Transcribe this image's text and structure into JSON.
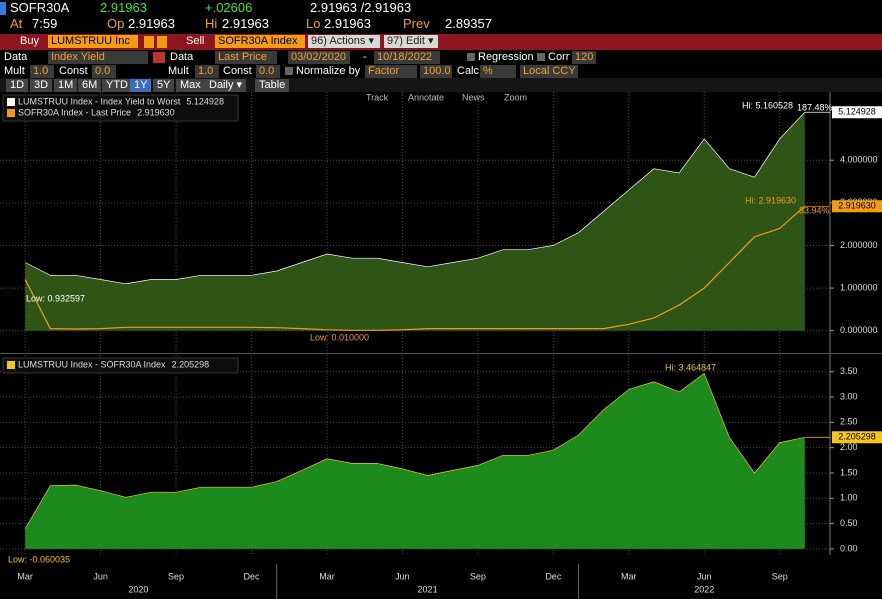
{
  "header": {
    "ticker": "SOFR30A",
    "last": "2.91963",
    "change": "+.02606",
    "bid_ask": "2.91963 /2.91963",
    "time_label": "At",
    "time": "7:59",
    "open_label": "Op",
    "open": "2.91963",
    "high_label": "Hi",
    "high": "2.91963",
    "low_label": "Lo",
    "low": "2.91963",
    "prev_label": "Prev",
    "prev": "2.89357"
  },
  "toolbar": {
    "buy": "Buy",
    "security1": "LUMSTRUU Inc",
    "sell": "Sell",
    "security2": "SOFR30A Index",
    "actions": "96) Actions ▾",
    "edit": "97) Edit ▾"
  },
  "data_row": {
    "data_label": "Data",
    "data_field": "Index Yield",
    "data2_label": "Data",
    "data2_field": "Last Price",
    "start": "03/02/2020",
    "separator": "-",
    "end": "10/18/2022",
    "regression": "Regression",
    "corr": "Corr",
    "corr_window": "120"
  },
  "mult_row": {
    "mult1_label": "Mult",
    "mult1": "1.0",
    "const1_label": "Const",
    "const1": "0.0",
    "mult2_label": "Mult",
    "mult2": "1.0",
    "const2_label": "Const",
    "const2": "0.0",
    "normalize_label": "Normalize by",
    "normalize": "Factor",
    "factor": "100.0",
    "calc_label": "Calc",
    "calc": "%",
    "currency": "Local CCY"
  },
  "periods": [
    "1D",
    "3D",
    "1M",
    "6M",
    "YTD",
    "1Y",
    "5Y",
    "Max"
  ],
  "active_period": "1Y",
  "frequency": "Daily ▾",
  "table": "Table",
  "chart_tools": [
    "Track",
    "Annotate",
    "News",
    "Zoom"
  ],
  "chart_data": [
    {
      "type": "area",
      "xlim": [
        "2020-02",
        "2022-11"
      ],
      "ylim": [
        -0.5,
        5.6
      ],
      "grid": true,
      "yticks": [
        {
          "value": 0,
          "label": "0.000000"
        },
        {
          "value": 1,
          "label": "1.000000"
        },
        {
          "value": 2,
          "label": "2.000000"
        },
        {
          "value": 3,
          "label": "3.000000"
        },
        {
          "value": 4,
          "label": "4.000000"
        }
      ],
      "x": [
        "2020-03",
        "2020-04",
        "2020-05",
        "2020-06",
        "2020-07",
        "2020-08",
        "2020-09",
        "2020-10",
        "2020-11",
        "2020-12",
        "2021-01",
        "2021-02",
        "2021-03",
        "2021-04",
        "2021-05",
        "2021-06",
        "2021-07",
        "2021-08",
        "2021-09",
        "2021-10",
        "2021-11",
        "2021-12",
        "2022-01",
        "2022-02",
        "2022-03",
        "2022-04",
        "2022-05",
        "2022-06",
        "2022-07",
        "2022-08",
        "2022-09",
        "2022-10"
      ],
      "series": [
        {
          "name": "LUMSTRUU Index - Index Yield to Worst",
          "color": "#ffffff",
          "fill": "#2f5516",
          "values": [
            1.6,
            1.3,
            1.3,
            1.2,
            1.1,
            1.2,
            1.2,
            1.3,
            1.3,
            1.3,
            1.4,
            1.6,
            1.8,
            1.7,
            1.7,
            1.6,
            1.5,
            1.6,
            1.7,
            1.9,
            1.9,
            2.0,
            2.3,
            2.8,
            3.3,
            3.8,
            3.7,
            4.5,
            3.8,
            3.6,
            4.5,
            5.124928
          ]
        },
        {
          "name": "SOFR30A Index - Last Price",
          "color": "#f39c12",
          "values": [
            1.2,
            0.05,
            0.04,
            0.05,
            0.08,
            0.08,
            0.08,
            0.08,
            0.08,
            0.08,
            0.07,
            0.05,
            0.02,
            0.01,
            0.01,
            0.02,
            0.05,
            0.05,
            0.05,
            0.05,
            0.05,
            0.05,
            0.05,
            0.05,
            0.15,
            0.3,
            0.6,
            1.0,
            1.6,
            2.2,
            2.4,
            2.91963
          ],
          "value_labels": [
            null,
            null,
            null,
            null,
            null,
            null,
            null,
            null,
            null,
            null,
            null,
            null,
            null,
            null,
            null,
            null,
            null,
            null,
            null,
            null,
            null,
            null,
            null,
            null,
            null,
            null,
            null,
            null,
            null,
            null,
            null,
            "2.919630"
          ]
        }
      ],
      "annotations": [
        "Hi: 5.160528",
        "187.48%",
        "Low: 0.932597",
        "Low: 0.010000",
        "Hi: 2.919630",
        "83.94%"
      ]
    },
    {
      "type": "area",
      "xlim": [
        "2020-02",
        "2022-11"
      ],
      "ylim": [
        -0.12,
        3.83
      ],
      "grid": true,
      "yticks": [
        {
          "value": 0,
          "label": "0.00"
        },
        {
          "value": 0.5,
          "label": "0.50"
        },
        {
          "value": 1,
          "label": "1.00"
        },
        {
          "value": 1.5,
          "label": "1.50"
        },
        {
          "value": 2,
          "label": "2.00"
        },
        {
          "value": 2.5,
          "label": "2.50"
        },
        {
          "value": 3,
          "label": "3.00"
        },
        {
          "value": 3.5,
          "label": "3.50"
        }
      ],
      "xticks": [
        {
          "value": "2020-03",
          "label": "Mar"
        },
        {
          "value": "2020-06",
          "label": "Jun"
        },
        {
          "value": "2020-09",
          "label": "Sep"
        },
        {
          "value": "2020-12",
          "label": "Dec"
        },
        {
          "value": "2021-03",
          "label": "Mar"
        },
        {
          "value": "2021-06",
          "label": "Jun"
        },
        {
          "value": "2021-09",
          "label": "Sep"
        },
        {
          "value": "2021-12",
          "label": "Dec"
        },
        {
          "value": "2022-03",
          "label": "Mar"
        },
        {
          "value": "2022-06",
          "label": "Jun"
        },
        {
          "value": "2022-09",
          "label": "Sep"
        }
      ],
      "years": [
        "2020",
        "2021",
        "2022"
      ],
      "x": [
        "2020-03",
        "2020-04",
        "2020-05",
        "2020-06",
        "2020-07",
        "2020-08",
        "2020-09",
        "2020-10",
        "2020-11",
        "2020-12",
        "2021-01",
        "2021-02",
        "2021-03",
        "2021-04",
        "2021-05",
        "2021-06",
        "2021-07",
        "2021-08",
        "2021-09",
        "2021-10",
        "2021-11",
        "2021-12",
        "2022-01",
        "2022-02",
        "2022-03",
        "2022-04",
        "2022-05",
        "2022-06",
        "2022-07",
        "2022-08",
        "2022-09",
        "2022-10"
      ],
      "series": [
        {
          "name": "LUMSTRUU Index - SOFR30A Index",
          "color": "#f5c518",
          "fill": "#1c8a1c",
          "values": [
            0.4,
            1.25,
            1.26,
            1.15,
            1.02,
            1.12,
            1.12,
            1.22,
            1.22,
            1.22,
            1.33,
            1.55,
            1.78,
            1.69,
            1.69,
            1.58,
            1.45,
            1.55,
            1.65,
            1.85,
            1.85,
            1.95,
            2.25,
            2.75,
            3.15,
            3.3,
            3.1,
            3.464847,
            2.2,
            1.5,
            2.1,
            2.205298
          ]
        }
      ],
      "annotations": [
        "Hi: 3.464847",
        "Low: -0.060035"
      ]
    }
  ]
}
